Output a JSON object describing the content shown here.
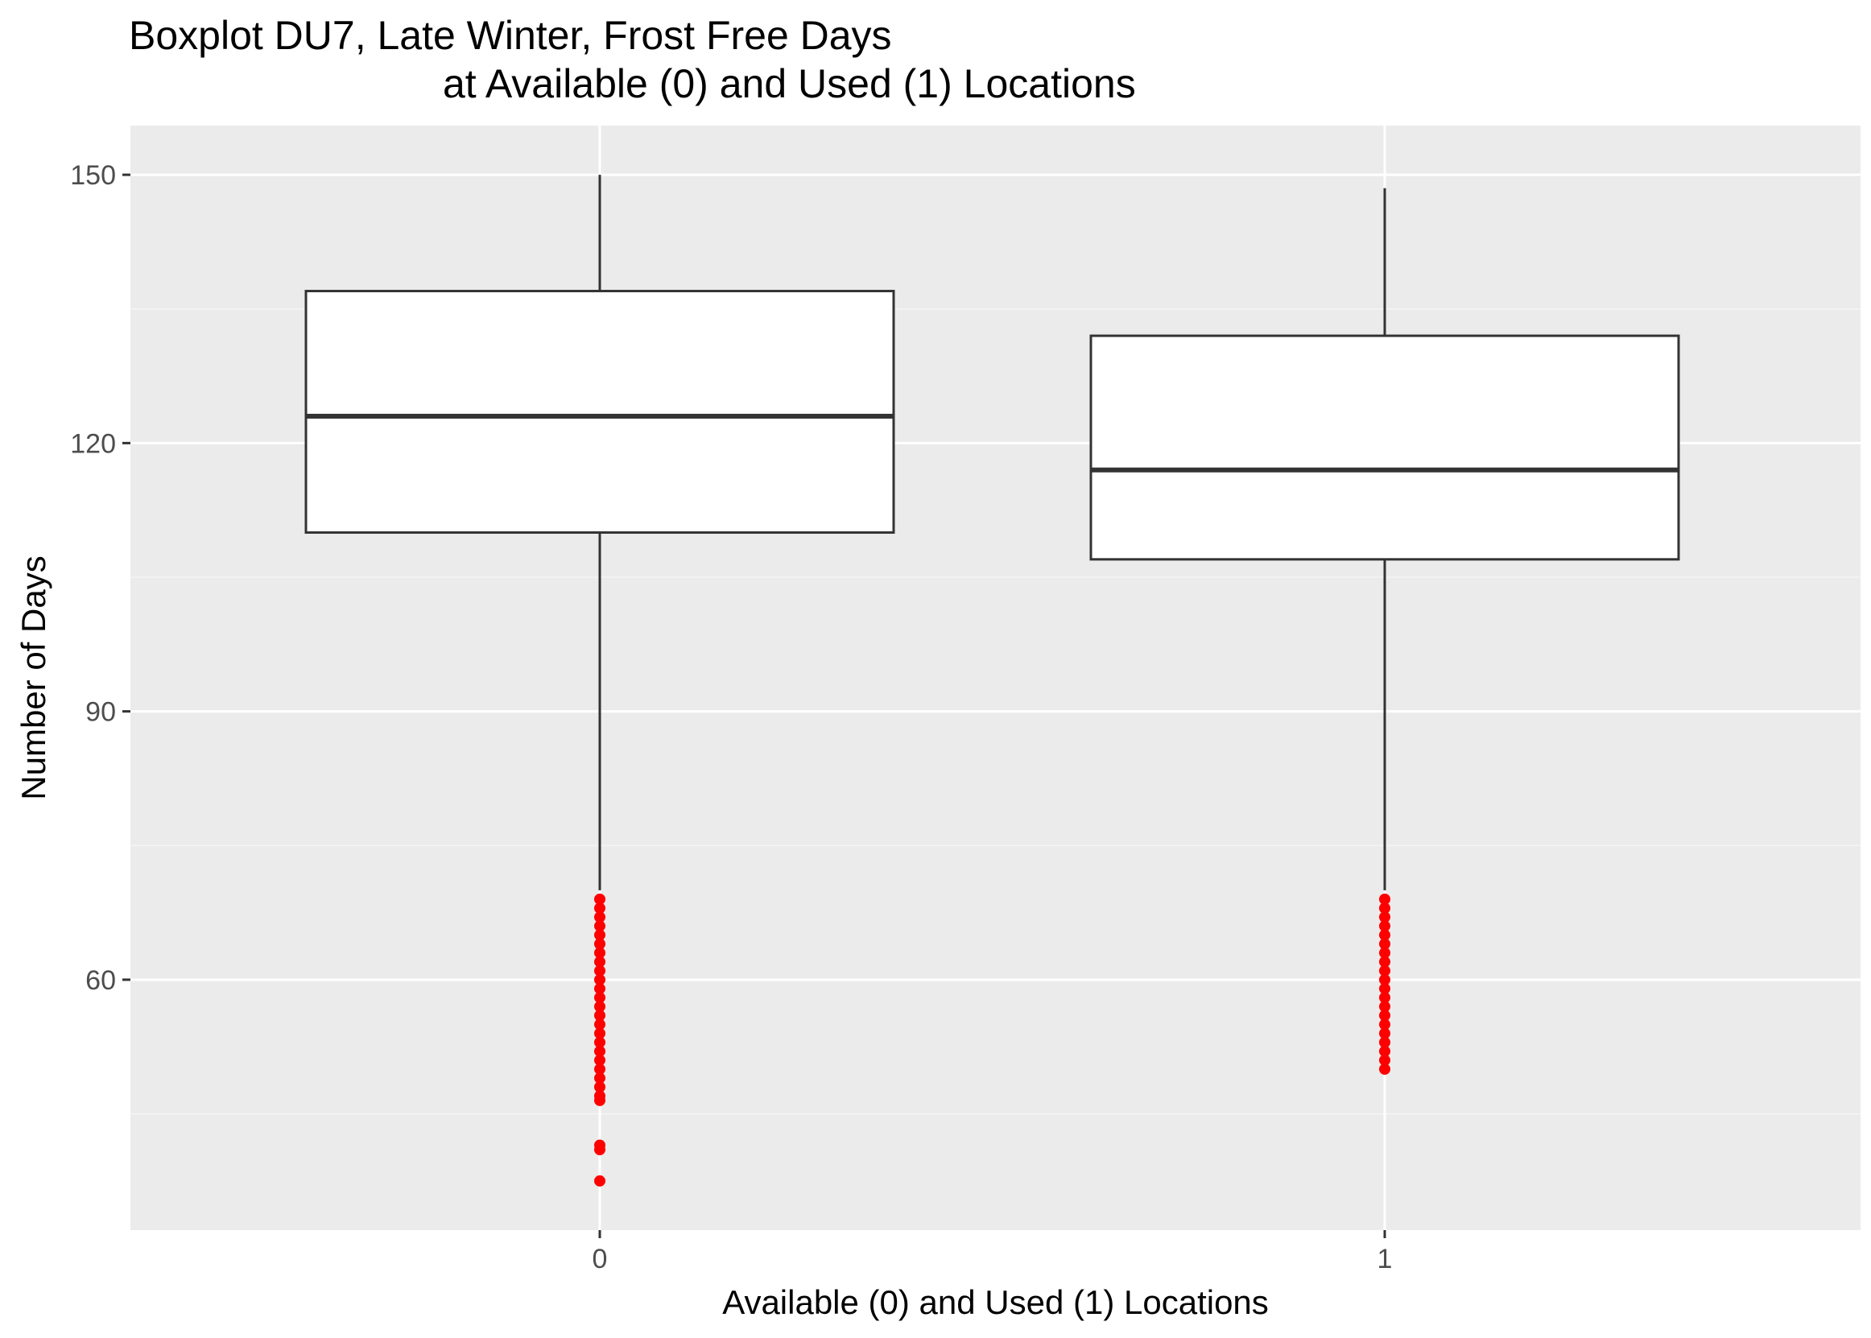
{
  "chart_data": {
    "type": "boxplot",
    "title_line1": "Boxplot DU7, Late Winter, Frost Free Days",
    "title_line2": "at Available (0) and Used (1) Locations",
    "xlabel": "Available (0) and Used (1) Locations",
    "ylabel": "Number of Days",
    "ylim": [
      32,
      155.5
    ],
    "y_ticks": [
      60,
      90,
      120,
      150
    ],
    "categories": [
      "0",
      "1"
    ],
    "boxes": [
      {
        "category": "0",
        "whisker_low": 70,
        "q1": 110,
        "median": 123,
        "q3": 137,
        "whisker_high": 150,
        "outliers": [
          69,
          68,
          67,
          66,
          65,
          64,
          63,
          62,
          61,
          60,
          59,
          58,
          57,
          56,
          55,
          54,
          53,
          52,
          51,
          50,
          49,
          48,
          47,
          46.5,
          41.5,
          41,
          37.5
        ]
      },
      {
        "category": "1",
        "whisker_low": 70,
        "q1": 107,
        "median": 117,
        "q3": 132,
        "whisker_high": 148.5,
        "outliers": [
          69,
          68,
          67,
          66,
          65,
          64,
          63,
          62,
          61,
          60,
          59,
          58,
          57,
          56,
          55,
          54,
          53,
          52,
          51,
          50
        ]
      }
    ],
    "grid": true,
    "colors": {
      "panel_background": "#ebebeb",
      "grid_major": "#ffffff",
      "grid_minor": "#f5f5f5",
      "box_fill": "#ffffff",
      "box_line": "#333333",
      "outlier": "#ff0000"
    }
  }
}
